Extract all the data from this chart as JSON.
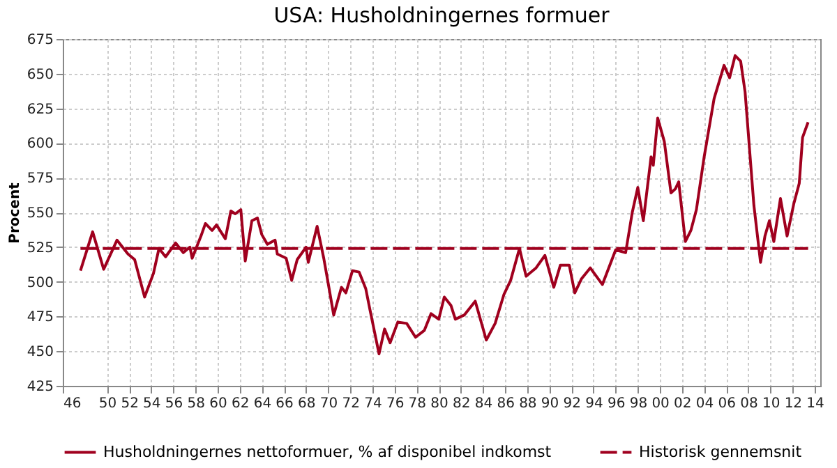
{
  "chart_data": {
    "type": "line",
    "title": "USA: Husholdningernes formuer",
    "ylabel": "Procent",
    "xlim": [
      1946,
      2014.5
    ],
    "xticks": [
      {
        "value": 1946,
        "label": "46"
      },
      {
        "value": 1950,
        "label": "50"
      },
      {
        "value": 1952,
        "label": "52"
      },
      {
        "value": 1954,
        "label": "54"
      },
      {
        "value": 1956,
        "label": "56"
      },
      {
        "value": 1958,
        "label": "58"
      },
      {
        "value": 1960,
        "label": "60"
      },
      {
        "value": 1962,
        "label": "62"
      },
      {
        "value": 1964,
        "label": "64"
      },
      {
        "value": 1966,
        "label": "66"
      },
      {
        "value": 1968,
        "label": "68"
      },
      {
        "value": 1970,
        "label": "70"
      },
      {
        "value": 1972,
        "label": "72"
      },
      {
        "value": 1974,
        "label": "74"
      },
      {
        "value": 1976,
        "label": "76"
      },
      {
        "value": 1978,
        "label": "78"
      },
      {
        "value": 1980,
        "label": "80"
      },
      {
        "value": 1982,
        "label": "82"
      },
      {
        "value": 1984,
        "label": "84"
      },
      {
        "value": 1986,
        "label": "86"
      },
      {
        "value": 1988,
        "label": "88"
      },
      {
        "value": 1990,
        "label": "90"
      },
      {
        "value": 1992,
        "label": "92"
      },
      {
        "value": 1994,
        "label": "94"
      },
      {
        "value": 1996,
        "label": "96"
      },
      {
        "value": 1998,
        "label": "98"
      },
      {
        "value": 2000,
        "label": "00"
      },
      {
        "value": 2002,
        "label": "02"
      },
      {
        "value": 2004,
        "label": "04"
      },
      {
        "value": 2006,
        "label": "06"
      },
      {
        "value": 2008,
        "label": "08"
      },
      {
        "value": 2010,
        "label": "10"
      },
      {
        "value": 2012,
        "label": "12"
      },
      {
        "value": 2014,
        "label": "14"
      }
    ],
    "ylim": [
      425,
      675
    ],
    "yticks": [
      425,
      450,
      475,
      500,
      525,
      550,
      575,
      600,
      625,
      650,
      675
    ],
    "grid": true,
    "legend": "bottom",
    "series": [
      {
        "name": "Husholdningernes nettoformuer, % af disponibel indkomst",
        "color": "#a0001e",
        "line_style": "solid",
        "x": [
          1947.6,
          1948.7,
          1949.7,
          1950.9,
          1951.9,
          1952.5,
          1953.4,
          1954.2,
          1954.7,
          1955.3,
          1956.2,
          1956.9,
          1957.5,
          1957.7,
          1958.5,
          1958.9,
          1959.5,
          1959.9,
          1960.7,
          1961.2,
          1961.6,
          1962.1,
          1962.5,
          1963.1,
          1963.6,
          1964,
          1964.5,
          1965.2,
          1965.4,
          1966.2,
          1966.7,
          1967.2,
          1968,
          1968.2,
          1969,
          1969.6,
          1970,
          1970.5,
          1971.2,
          1971.6,
          1972.2,
          1972.8,
          1973.4,
          1973.8,
          1974.6,
          1975.1,
          1975.6,
          1976.3,
          1977.1,
          1977.9,
          1978.7,
          1979.3,
          1980,
          1980.5,
          1981.1,
          1981.5,
          1982.3,
          1983.3,
          1984.3,
          1985.1,
          1985.9,
          1986.5,
          1987.3,
          1987.9,
          1988.8,
          1989.6,
          1990.4,
          1991,
          1991.8,
          1992.3,
          1992.9,
          1993.7,
          1994.8,
          1996,
          1996.9,
          1997.5,
          1998,
          1998.5,
          1999.2,
          1999.4,
          1999.8,
          2000.4,
          2001,
          2001.4,
          2001.7,
          2002.3,
          2002.8,
          2003.3,
          2004,
          2004.9,
          2005.8,
          2006.3,
          2006.8,
          2007.3,
          2007.7,
          2008.5,
          2009.1,
          2009.5,
          2009.9,
          2010.3,
          2010.9,
          2011.5,
          2012.1,
          2012.6,
          2012.9,
          2013.4
        ],
        "values": [
          508,
          536,
          509,
          530,
          520,
          516,
          489,
          506,
          524,
          518,
          528,
          521,
          525,
          517,
          533,
          542,
          537,
          541,
          531,
          551,
          549,
          552,
          515,
          544,
          546,
          534,
          527,
          530,
          520,
          517,
          501,
          516,
          525,
          514,
          540,
          517,
          499,
          476,
          496,
          492,
          508,
          507,
          495,
          479,
          448,
          466,
          456,
          471,
          470,
          460,
          465,
          477,
          473,
          489,
          483,
          473,
          476,
          486,
          458,
          470,
          491,
          501,
          524,
          504,
          510,
          519,
          496,
          512,
          512,
          492,
          502,
          510,
          498,
          523,
          521,
          550,
          568,
          544,
          590,
          584,
          618,
          601,
          564,
          567,
          572,
          529,
          537,
          552,
          590,
          632,
          656,
          647,
          663,
          659,
          637,
          555,
          514,
          533,
          544,
          529,
          560,
          533,
          556,
          571,
          604,
          615
        ]
      },
      {
        "name": "Historisk gennemsnit",
        "color": "#a0001e",
        "line_style": "dashed",
        "x": [
          1947.6,
          2013.4
        ],
        "values": [
          524,
          524
        ]
      }
    ]
  }
}
